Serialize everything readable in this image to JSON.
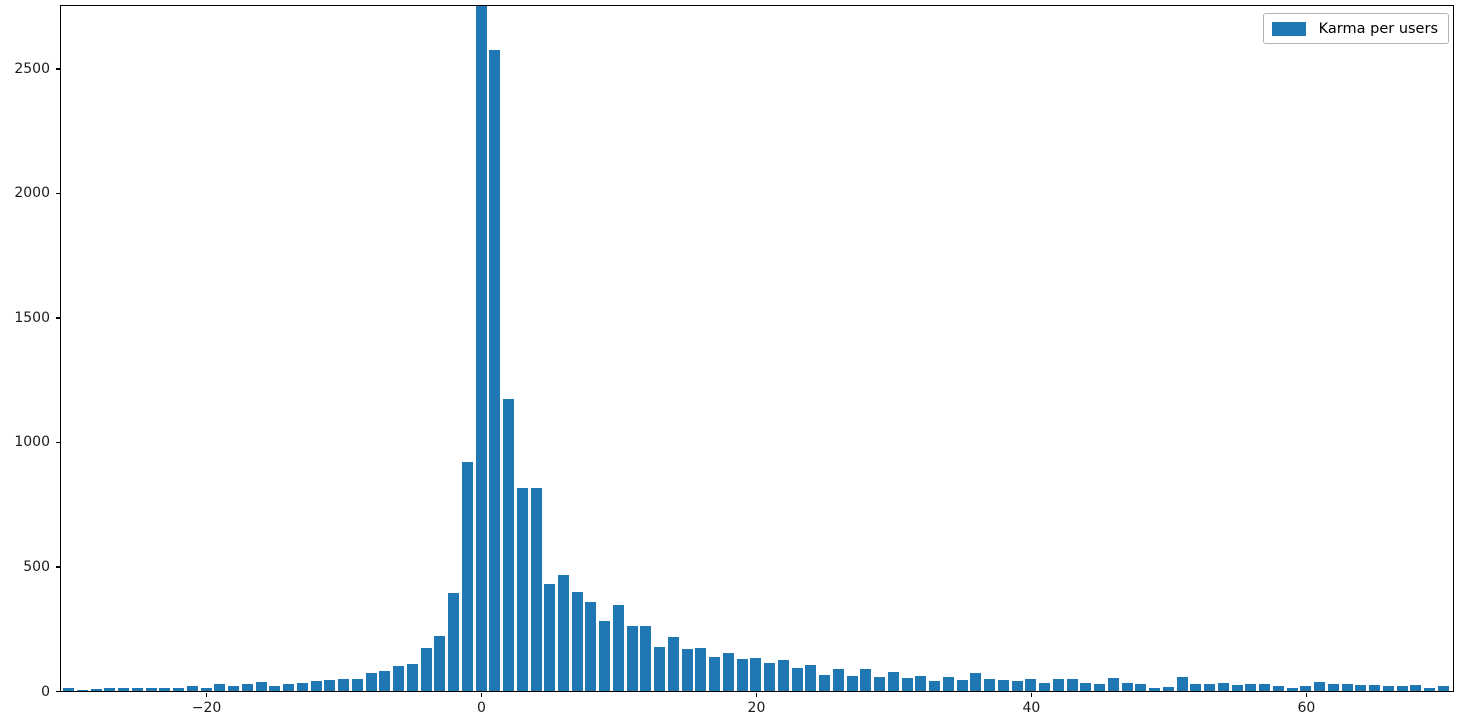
{
  "chart_data": {
    "type": "bar",
    "subtype": "histogram",
    "title": "",
    "xlabel": "",
    "ylabel": "",
    "legend_label": "Karma per users",
    "legend_position": "upper right",
    "bar_color": "#1f77b4",
    "grid": false,
    "xlim": [
      -30.55,
      70.7
    ],
    "ylim": [
      0,
      2750
    ],
    "bin_width": 1,
    "bar_rel_width": 0.8,
    "x_ticks": [
      -20,
      0,
      20,
      40,
      60
    ],
    "x_tick_labels": [
      "−20",
      "0",
      "20",
      "40",
      "60"
    ],
    "y_ticks": [
      0,
      500,
      1000,
      1500,
      2000,
      2500
    ],
    "y_tick_labels": [
      "0",
      "500",
      "1000",
      "1500",
      "2000",
      "2500"
    ],
    "x": [
      -30,
      -29,
      -28,
      -27,
      -26,
      -25,
      -24,
      -23,
      -22,
      -21,
      -20,
      -19,
      -18,
      -17,
      -16,
      -15,
      -14,
      -13,
      -12,
      -11,
      -10,
      -9,
      -8,
      -7,
      -6,
      -5,
      -4,
      -3,
      -2,
      -1,
      0,
      1,
      2,
      3,
      4,
      5,
      6,
      7,
      8,
      9,
      10,
      11,
      12,
      13,
      14,
      15,
      16,
      17,
      18,
      19,
      20,
      21,
      22,
      23,
      24,
      25,
      26,
      27,
      28,
      29,
      30,
      31,
      32,
      33,
      34,
      35,
      36,
      37,
      38,
      39,
      40,
      41,
      42,
      43,
      44,
      45,
      46,
      47,
      48,
      49,
      50,
      51,
      52,
      53,
      54,
      55,
      56,
      57,
      58,
      59,
      60,
      61,
      62,
      63,
      64,
      65,
      66,
      67,
      68,
      69,
      70
    ],
    "values": [
      13,
      3,
      7,
      11,
      11,
      11,
      11,
      11,
      11,
      19,
      11,
      29,
      21,
      27,
      35,
      19,
      29,
      32,
      40,
      43,
      48,
      48,
      74,
      80,
      100,
      107,
      173,
      220,
      392,
      919,
      2750,
      2572,
      1172,
      816,
      816,
      428,
      464,
      397,
      357,
      281,
      344,
      261,
      261,
      175,
      217,
      170,
      171,
      135,
      152,
      130,
      131,
      111,
      124,
      92,
      104,
      63,
      87,
      60,
      87,
      58,
      76,
      52,
      62,
      40,
      58,
      44,
      71,
      47,
      44,
      40,
      50,
      33,
      47,
      50,
      33,
      27,
      53,
      33,
      29,
      13,
      16,
      56,
      30,
      28,
      32,
      26,
      28,
      28,
      19,
      14,
      22,
      35,
      28,
      27,
      25,
      25,
      22,
      22,
      24,
      12,
      22
    ]
  },
  "axes": {
    "spine_color": "#000000",
    "tick_color": "#000000",
    "tick_label_color": "#1a1a1a",
    "background": "#ffffff"
  },
  "legend": {
    "label": "Karma per users",
    "swatch_color": "#1f77b4"
  }
}
